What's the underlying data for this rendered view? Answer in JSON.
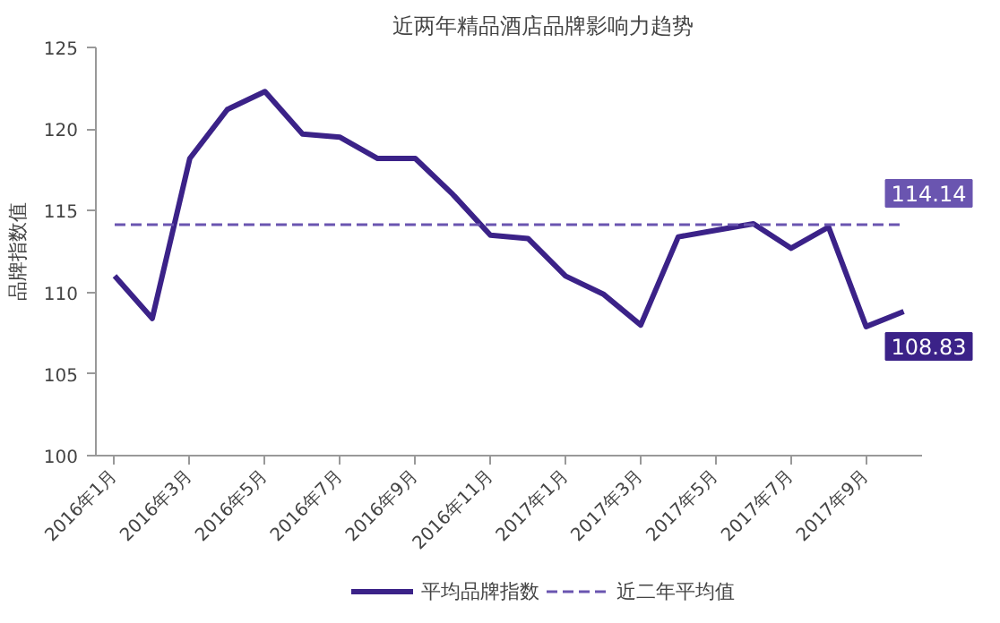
{
  "chart_data": {
    "type": "line",
    "title": "近两年精品酒店品牌影响力趋势",
    "ylabel": "品牌指数值",
    "categories": [
      "2016年1月",
      null,
      "2016年3月",
      null,
      "2016年5月",
      null,
      "2016年7月",
      null,
      "2016年9月",
      null,
      "2016年11月",
      null,
      "2017年1月",
      null,
      "2017年3月",
      null,
      "2017年5月",
      null,
      "2017年7月",
      null,
      "2017年9月",
      null
    ],
    "series": [
      {
        "name": "平均品牌指数",
        "color": "#3b2288",
        "line_style": "solid",
        "values": [
          111.0,
          108.4,
          118.2,
          121.2,
          122.3,
          119.7,
          119.5,
          118.2,
          118.2,
          116.0,
          113.5,
          113.3,
          111.0,
          109.9,
          108.0,
          113.4,
          113.8,
          114.2,
          112.7,
          114.0,
          107.9,
          108.83
        ],
        "value_labels": [
          null,
          null,
          null,
          null,
          null,
          null,
          null,
          null,
          null,
          null,
          null,
          null,
          null,
          null,
          null,
          null,
          null,
          null,
          null,
          null,
          null,
          "108.83"
        ]
      },
      {
        "name": "近二年平均值",
        "color": "#6a55b0",
        "line_style": "dashed",
        "values": [
          114.14,
          114.14,
          114.14,
          114.14,
          114.14,
          114.14,
          114.14,
          114.14,
          114.14,
          114.14,
          114.14,
          114.14,
          114.14,
          114.14,
          114.14,
          114.14,
          114.14,
          114.14,
          114.14,
          114.14,
          114.14,
          114.14
        ],
        "value_labels": [
          null,
          null,
          null,
          null,
          null,
          null,
          null,
          null,
          null,
          null,
          null,
          null,
          null,
          null,
          null,
          null,
          null,
          null,
          null,
          null,
          null,
          "114.14"
        ]
      }
    ],
    "ylim": [
      100,
      125
    ],
    "yticks": [
      100,
      105,
      110,
      115,
      120,
      125
    ],
    "grid": false,
    "legend": "bottom"
  }
}
